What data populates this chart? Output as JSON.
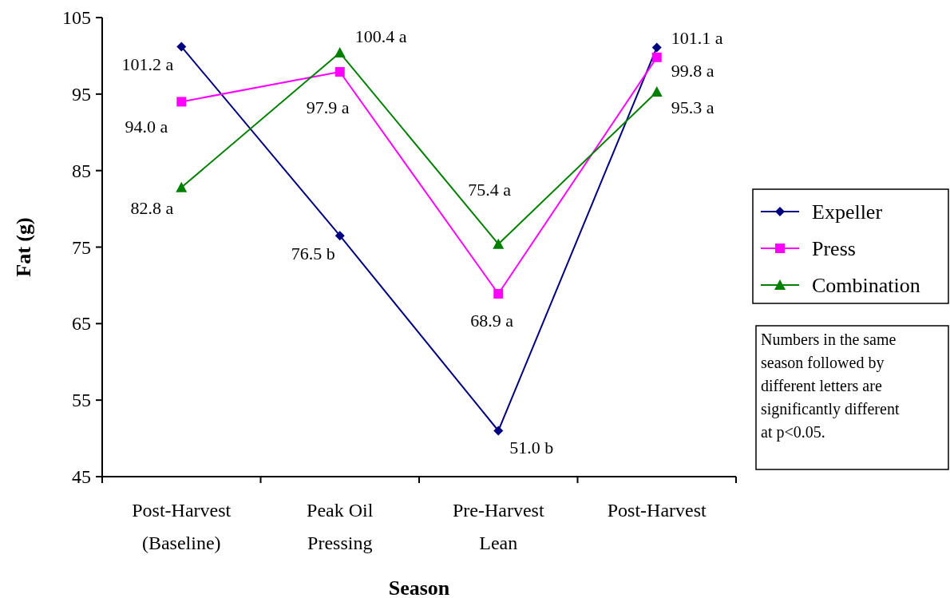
{
  "chart_data": {
    "type": "line",
    "xlabel": "Season",
    "ylabel": "Fat (g)",
    "categories": [
      "Post-Harvest (Baseline)",
      "Peak Oil Pressing",
      "Pre-Harvest Lean",
      "Post-Harvest"
    ],
    "series": [
      {
        "name": "Expeller",
        "color": "#000080",
        "marker": "diamond",
        "values": [
          101.2,
          76.5,
          51.0,
          101.1
        ],
        "value_labels": [
          "101.2 a",
          "76.5 b",
          "51.0 b",
          "101.1 a"
        ]
      },
      {
        "name": "Press",
        "color": "#ff00ff",
        "marker": "square",
        "values": [
          94.0,
          97.9,
          68.9,
          99.8
        ],
        "value_labels": [
          "94.0 a",
          "97.9 a",
          "68.9 a",
          "99.8 a"
        ]
      },
      {
        "name": "Combination",
        "color": "#008000",
        "marker": "triangle",
        "values": [
          82.8,
          100.4,
          75.4,
          95.3
        ],
        "value_labels": [
          "82.8 a",
          "100.4 a",
          "75.4 a",
          "95.3 a"
        ]
      }
    ],
    "ylim": [
      45,
      105
    ],
    "yticks": [
      45,
      55,
      65,
      75,
      85,
      95,
      105
    ],
    "grid": false,
    "legend": "right",
    "annotations": [
      "Numbers in the same season followed by different letters are significantly different at p<0.05."
    ]
  }
}
